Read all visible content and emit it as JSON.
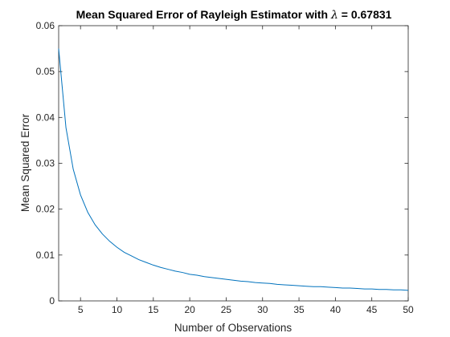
{
  "chart_data": {
    "type": "line",
    "title_prefix": "Mean Squared Error of Rayleigh Estimator with ",
    "title_symbol": "λ",
    "title_suffix": " = 0.67831",
    "xlabel": "Number of Observations",
    "ylabel": "Mean Squared Error",
    "xlim": [
      2,
      50
    ],
    "ylim": [
      0,
      0.06
    ],
    "xticks": [
      5,
      10,
      15,
      20,
      25,
      30,
      35,
      40,
      45,
      50
    ],
    "yticks": [
      0,
      0.01,
      0.02,
      0.03,
      0.04,
      0.05,
      0.06
    ],
    "grid": false,
    "line_color": "#0072BD",
    "series": [
      {
        "x": [
          2,
          3,
          4,
          5,
          6,
          7,
          8,
          9,
          10,
          11,
          12,
          13,
          14,
          15,
          16,
          17,
          18,
          19,
          20,
          21,
          22,
          23,
          24,
          25,
          26,
          27,
          28,
          29,
          30,
          31,
          32,
          33,
          34,
          35,
          36,
          37,
          38,
          39,
          40,
          41,
          42,
          43,
          44,
          45,
          46,
          47,
          48,
          49,
          50
        ],
        "y": [
          0.055,
          0.0378,
          0.0287,
          0.0231,
          0.0193,
          0.0166,
          0.0146,
          0.013,
          0.0117,
          0.0106,
          0.0098,
          0.009,
          0.0084,
          0.0078,
          0.0073,
          0.0069,
          0.0065,
          0.0062,
          0.0058,
          0.0056,
          0.0053,
          0.0051,
          0.0049,
          0.0047,
          0.0045,
          0.0043,
          0.0042,
          0.004,
          0.0039,
          0.0038,
          0.0036,
          0.0035,
          0.0034,
          0.0033,
          0.0032,
          0.0031,
          0.0031,
          0.003,
          0.0029,
          0.0028,
          0.0028,
          0.0027,
          0.0026,
          0.0026,
          0.0025,
          0.0025,
          0.0024,
          0.0024,
          0.0023
        ]
      }
    ]
  }
}
